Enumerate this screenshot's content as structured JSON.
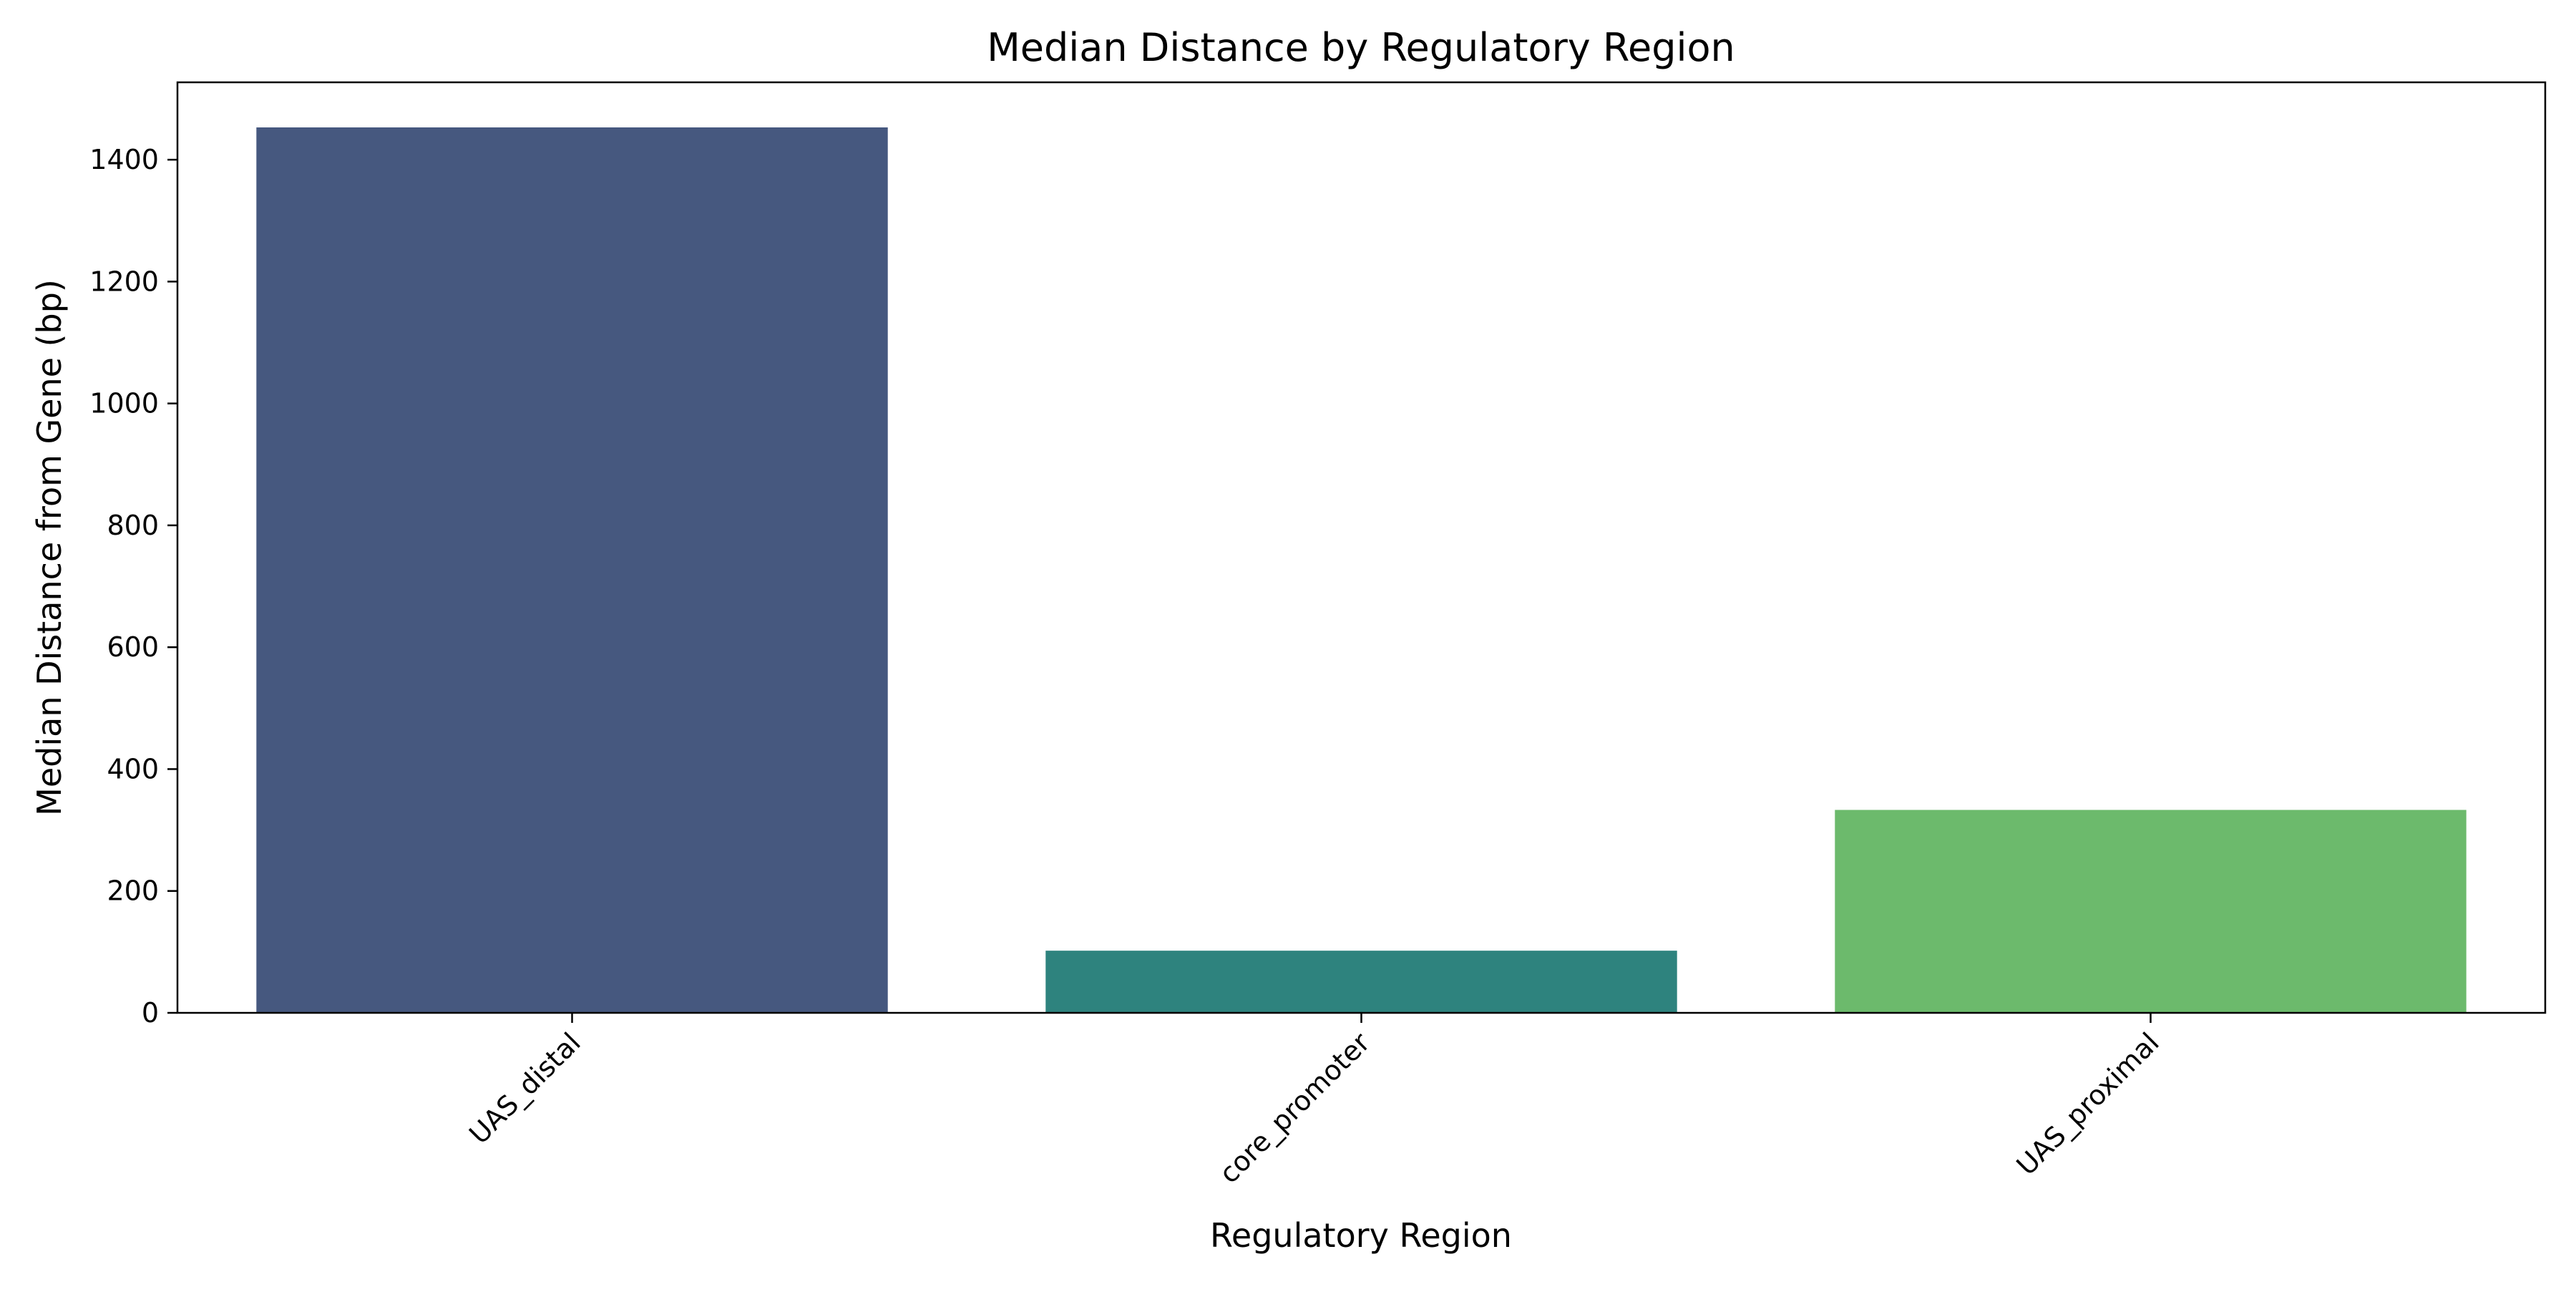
{
  "chart_data": {
    "type": "bar",
    "title": "Median Distance by Regulatory Region",
    "xlabel": "Regulatory Region",
    "ylabel": "Median Distance from Gene (bp)",
    "categories": [
      "UAS_distal",
      "core_promoter",
      "UAS_proximal"
    ],
    "values": [
      1453,
      102,
      333
    ],
    "colors": [
      "#46587f",
      "#2e837e",
      "#6cba6c"
    ],
    "ylim": [
      0,
      1527
    ],
    "yticks": [
      0,
      200,
      400,
      600,
      800,
      1000,
      1200,
      1400
    ],
    "grid": false,
    "legend": "none",
    "xtick_rotation": "45 degrees"
  }
}
